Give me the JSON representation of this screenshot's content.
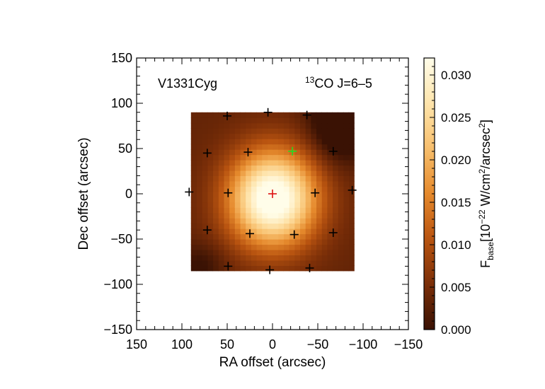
{
  "chart_data": {
    "type": "heatmap",
    "object_name": "V1331Cyg",
    "line_label": {
      "sup": "13",
      "main": "CO J=6–5"
    },
    "xlabel": "RA offset (arcsec)",
    "ylabel": "Dec offset (arcsec)",
    "xlim": [
      150,
      -150
    ],
    "ylim": [
      -150,
      150
    ],
    "xticks": [
      150,
      100,
      50,
      0,
      -50,
      -100,
      -150
    ],
    "xtick_labels": [
      "150",
      "100",
      "50",
      "0",
      "−50",
      "−100",
      "−150"
    ],
    "yticks": [
      150,
      100,
      50,
      0,
      -50,
      -100,
      -150
    ],
    "ytick_labels": [
      "150",
      "100",
      "50",
      "0",
      "−50",
      "−100",
      "−150"
    ],
    "map_extent": {
      "x": [
        90,
        -90
      ],
      "y": [
        -85,
        90
      ]
    },
    "map_peak": {
      "x": 0,
      "y": -5,
      "value": 0.032
    },
    "colorbar": {
      "label": "F",
      "label_sub": "base",
      "label_unit_pre": "[10",
      "label_unit_exp": "−22",
      "label_unit_mid": " W/cm",
      "label_unit_exp2": "2",
      "label_unit_mid2": "/arcsec",
      "label_unit_exp3": "2",
      "label_unit_post": "]",
      "range": [
        0.0,
        0.032
      ],
      "ticks": [
        0.0,
        0.005,
        0.01,
        0.015,
        0.02,
        0.025,
        0.03
      ],
      "tick_labels": [
        "0.000",
        "0.005",
        "0.010",
        "0.015",
        "0.020",
        "0.025",
        "0.030"
      ],
      "colormap": [
        "#3a1204",
        "#7a2e08",
        "#b95410",
        "#e5892c",
        "#f8bf6c",
        "#fee4ac",
        "#fffde9"
      ]
    },
    "markers": [
      {
        "x": 50,
        "y": 86,
        "color": "#000000"
      },
      {
        "x": 5,
        "y": 90,
        "color": "#000000"
      },
      {
        "x": -38,
        "y": 87,
        "color": "#000000"
      },
      {
        "x": 72,
        "y": 45,
        "color": "#000000"
      },
      {
        "x": 27,
        "y": 46,
        "color": "#000000"
      },
      {
        "x": -22,
        "y": 47,
        "color": "#22dd22"
      },
      {
        "x": -67,
        "y": 47,
        "color": "#000000"
      },
      {
        "x": 92,
        "y": 2,
        "color": "#000000"
      },
      {
        "x": 49,
        "y": 1,
        "color": "#000000"
      },
      {
        "x": 0,
        "y": 0,
        "color": "#dd1111"
      },
      {
        "x": -47,
        "y": 1,
        "color": "#000000"
      },
      {
        "x": -88,
        "y": 4,
        "color": "#000000"
      },
      {
        "x": 72,
        "y": -40,
        "color": "#000000"
      },
      {
        "x": 25,
        "y": -44,
        "color": "#000000"
      },
      {
        "x": -24,
        "y": -45,
        "color": "#000000"
      },
      {
        "x": -67,
        "y": -43,
        "color": "#000000"
      },
      {
        "x": 49,
        "y": -80,
        "color": "#000000"
      },
      {
        "x": 3,
        "y": -84,
        "color": "#000000"
      },
      {
        "x": -41,
        "y": -82,
        "color": "#000000"
      }
    ]
  }
}
